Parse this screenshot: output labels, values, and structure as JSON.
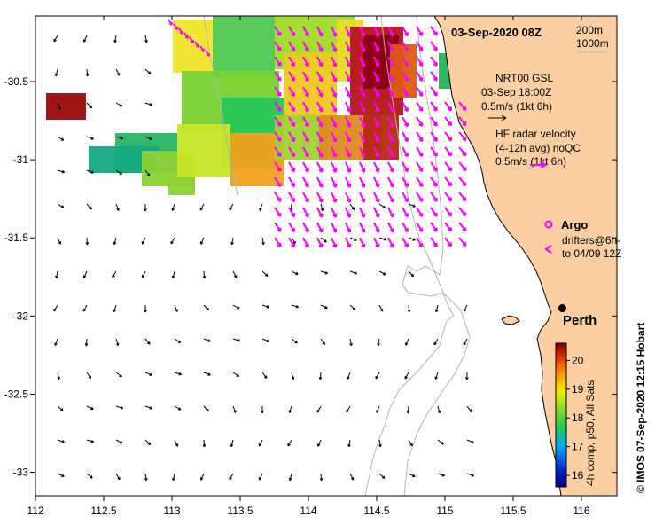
{
  "title": "03-Sep-2020 08Z",
  "contours": {
    "line1": "200m",
    "line2": "1000m"
  },
  "wind_legend": {
    "line1": "NRT00 GSL",
    "line2": "03-Sep 18:00Z",
    "line3": "0.5m/s (1kt 6h)"
  },
  "radar_legend": {
    "line1": "HF radar velocity",
    "line2": "(4-12h avg) noQC",
    "line3": "0.5m/s (1kt 6h)"
  },
  "argo_label": "Argo",
  "drifter_legend": {
    "line1": "drifters@6h-",
    "line2": "to 04/09 12Z"
  },
  "city": {
    "name": "Perth",
    "lon": 115.86,
    "lat": -31.95
  },
  "colorbar": {
    "label": "4h comp, p50, All Sats",
    "ticks": [
      "20",
      "19",
      "18",
      "17",
      "16"
    ],
    "range": [
      15.6,
      20.6
    ]
  },
  "credit": "© IMOS 07-Sep-2020 12:15 Hobart",
  "colors": {
    "land": "#fbcfa1",
    "vector_wind": "#000000",
    "vector_radar": "#ff00ff",
    "contour": "#b4b4b4"
  },
  "chart_data": {
    "type": "map",
    "x_ticks": [
      "112",
      "112.5",
      "113",
      "113.5",
      "114",
      "114.5",
      "115",
      "115.5",
      "116"
    ],
    "x_tick_values": [
      112,
      112.5,
      113,
      113.5,
      114,
      114.5,
      115,
      115.5,
      116
    ],
    "y_ticks": [
      "-30.5",
      "-31",
      "-31.5",
      "-32",
      "-32.5",
      "-33"
    ],
    "y_tick_values": [
      -30.5,
      -31,
      -31.5,
      -32,
      -32.5,
      -33
    ],
    "xlim": [
      112,
      116.26
    ],
    "ylim": [
      -33.15,
      -30.08
    ]
  }
}
